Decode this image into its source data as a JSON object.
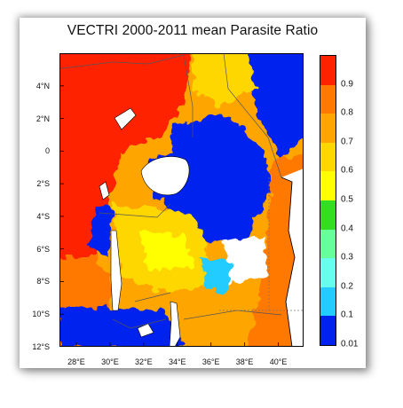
{
  "title": "VECTRI 2000-2011 mean Parasite Ratio",
  "lat_labels": [
    "4°N",
    "2°N",
    "0",
    "2°S",
    "4°S",
    "6°S",
    "8°S",
    "10°S",
    "12°S"
  ],
  "lon_labels": [
    "28°E",
    "30°E",
    "32°E",
    "34°E",
    "36°E",
    "38°E",
    "40°E"
  ],
  "colorbar": {
    "labels": [
      "0.9",
      "0.8",
      "0.7",
      "0.6",
      "0.5",
      "0.4",
      "0.3",
      "0.2",
      "0.1",
      "0.01"
    ],
    "colors": [
      "#ff2200",
      "#ff7800",
      "#ffa500",
      "#ffd700",
      "#ffff00",
      "#33dd22",
      "#66ff99",
      "#66ffee",
      "#22ccff",
      "#0022ee"
    ]
  },
  "chart_data": {
    "type": "heatmap",
    "title": "VECTRI 2000-2011 mean Parasite Ratio",
    "lon_range": [
      27,
      41.5
    ],
    "lat_range": [
      -12,
      6
    ],
    "colorbar_levels": [
      0.01,
      0.1,
      0.2,
      0.3,
      0.4,
      0.5,
      0.6,
      0.7,
      0.8,
      0.9
    ]
  }
}
